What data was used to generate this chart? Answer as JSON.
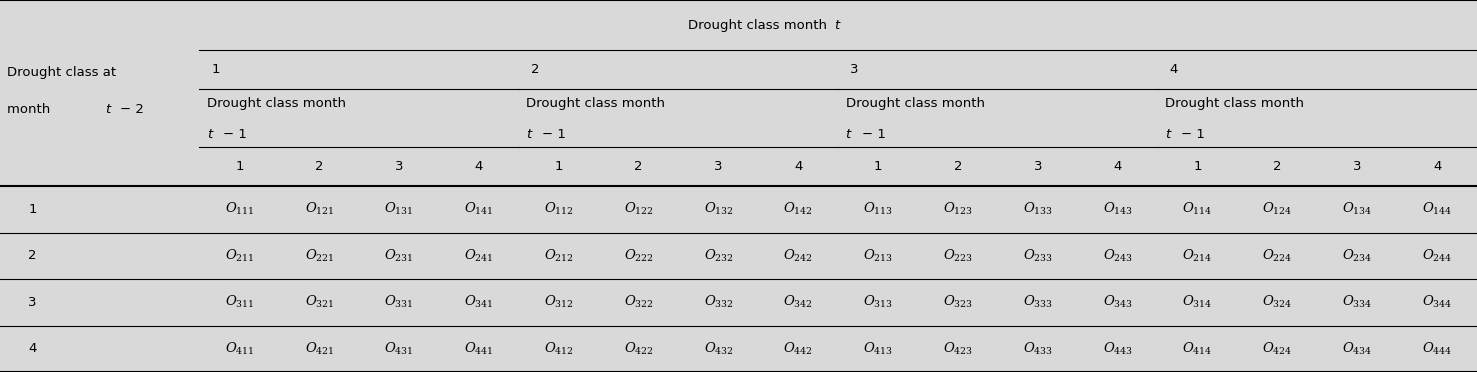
{
  "bg_color": "#d9d9d9",
  "cell_fontsize": 9.5,
  "group_labels": [
    "1",
    "2",
    "3",
    "4"
  ],
  "sub_labels": [
    "1",
    "2",
    "3",
    "4"
  ],
  "row_labels": [
    "1",
    "2",
    "3",
    "4"
  ],
  "cells": [
    [
      "O_{111}",
      "O_{121}",
      "O_{131}",
      "O_{141}",
      "O_{112}",
      "O_{122}",
      "O_{132}",
      "O_{142}",
      "O_{113}",
      "O_{123}",
      "O_{133}",
      "O_{143}",
      "O_{114}",
      "O_{124}",
      "O_{134}",
      "O_{144}"
    ],
    [
      "O_{211}",
      "O_{221}",
      "O_{231}",
      "O_{241}",
      "O_{212}",
      "O_{222}",
      "O_{232}",
      "O_{242}",
      "O_{213}",
      "O_{223}",
      "O_{233}",
      "O_{243}",
      "O_{214}",
      "O_{224}",
      "O_{234}",
      "O_{244}"
    ],
    [
      "O_{311}",
      "O_{321}",
      "O_{331}",
      "O_{341}",
      "O_{312}",
      "O_{322}",
      "O_{332}",
      "O_{342}",
      "O_{313}",
      "O_{323}",
      "O_{333}",
      "O_{343}",
      "O_{314}",
      "O_{324}",
      "O_{334}",
      "O_{344}"
    ],
    [
      "O_{411}",
      "O_{421}",
      "O_{431}",
      "O_{441}",
      "O_{412}",
      "O_{422}",
      "O_{432}",
      "O_{442}",
      "O_{413}",
      "O_{423}",
      "O_{433}",
      "O_{443}",
      "O_{414}",
      "O_{424}",
      "O_{434}",
      "O_{444}"
    ]
  ]
}
